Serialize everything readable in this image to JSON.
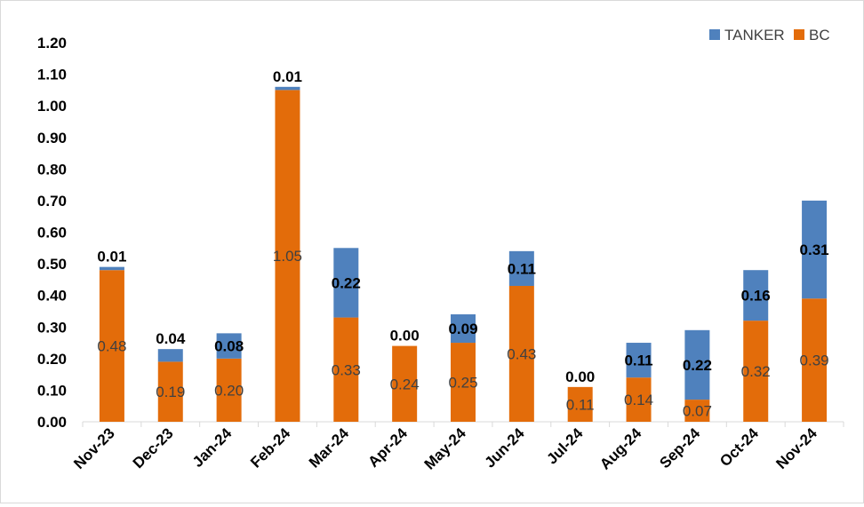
{
  "chart_data": {
    "type": "bar",
    "stacked": true,
    "title": "",
    "xlabel": "",
    "ylabel": "",
    "ylim": [
      0,
      1.2
    ],
    "ytick_step": 0.1,
    "grid": false,
    "legend_position": "top-right",
    "categories": [
      "Nov-23",
      "Dec-23",
      "Jan-24",
      "Feb-24",
      "Mar-24",
      "Apr-24",
      "May-24",
      "Jun-24",
      "Jul-24",
      "Aug-24",
      "Sep-24",
      "Oct-24",
      "Nov-24"
    ],
    "series": [
      {
        "name": "BC",
        "color": "#e36c0a",
        "values": [
          0.48,
          0.19,
          0.2,
          1.05,
          0.33,
          0.24,
          0.25,
          0.43,
          0.11,
          0.14,
          0.07,
          0.32,
          0.39
        ],
        "labels": [
          "0.48",
          "0.19",
          "0.20",
          "1.05",
          "0.33",
          "0.24",
          "0.25",
          "0.43",
          "0.11",
          "0.14",
          "0.07",
          "0.32",
          "0.39"
        ]
      },
      {
        "name": "TANKER",
        "color": "#4f81bd",
        "values": [
          0.01,
          0.04,
          0.08,
          0.01,
          0.22,
          0.0,
          0.09,
          0.11,
          0.0,
          0.11,
          0.22,
          0.16,
          0.31
        ],
        "labels": [
          "0.01",
          "0.04",
          "0.08",
          "0.01",
          "0.22",
          "0.00",
          "0.09",
          "0.11",
          "0.00",
          "0.11",
          "0.22",
          "0.16",
          "0.31"
        ]
      }
    ],
    "legend": [
      "TANKER",
      "BC"
    ]
  }
}
